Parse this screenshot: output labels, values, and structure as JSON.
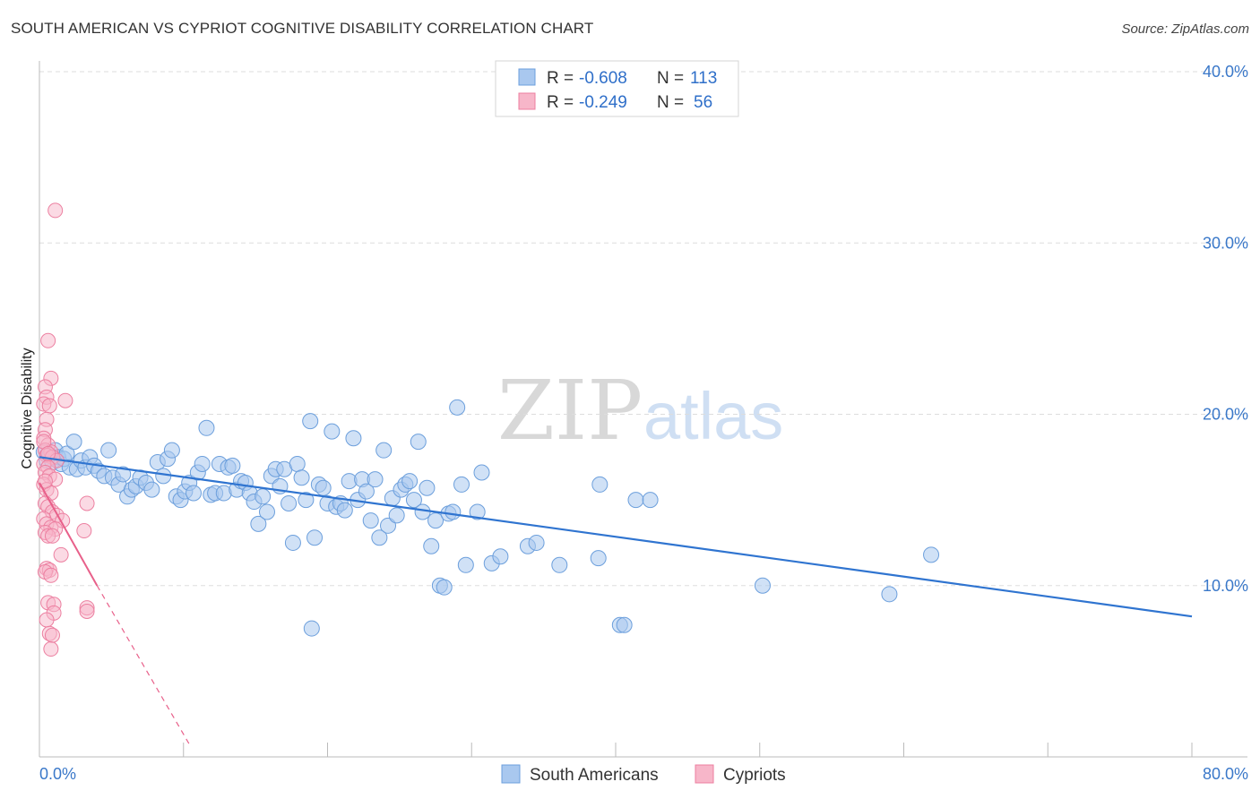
{
  "header": {
    "title": "SOUTH AMERICAN VS CYPRIOT COGNITIVE DISABILITY CORRELATION CHART",
    "source": "Source: ZipAtlas.com"
  },
  "watermark": {
    "zip": "ZIP",
    "atlas": "atlas"
  },
  "legend": {
    "rows": [
      {
        "r_label": "R =",
        "r_value": "-0.608",
        "n_label": "N =",
        "n_value": "113",
        "color": "#a9c8ef"
      },
      {
        "r_label": "R =",
        "r_value": "-0.249",
        "n_label": "N =",
        "n_value": "56",
        "color": "#f7b6c9"
      }
    ]
  },
  "bottom_legend": {
    "south_americans": "South Americans",
    "cypriots": "Cypriots"
  },
  "colors": {
    "blue_fill": "#a9c8ef",
    "blue_stroke": "#6c9fdc",
    "blue_line": "#2f74d0",
    "pink_fill": "#f7b6c9",
    "pink_stroke": "#ec7fa0",
    "pink_line": "#e8608a",
    "grid": "#dddddd",
    "axis_text": "#3a78c9"
  },
  "chart_data": {
    "type": "scatter",
    "title": "SOUTH AMERICAN VS CYPRIOT COGNITIVE DISABILITY CORRELATION CHART",
    "xlabel": "",
    "ylabel": "Cognitive Disability",
    "xlim": [
      0,
      80
    ],
    "ylim": [
      0,
      40
    ],
    "x_tick_labels": [
      "0.0%",
      "80.0%"
    ],
    "y_tick_labels": [
      "10.0%",
      "20.0%",
      "30.0%",
      "40.0%"
    ],
    "y_ticks": [
      10,
      20,
      30,
      40
    ],
    "grid": true,
    "series": [
      {
        "name": "South Americans",
        "r": -0.608,
        "n": 113,
        "trend": {
          "x0": 0,
          "y0": 17.5,
          "x1": 80,
          "y1": 8.2,
          "style": "solid"
        },
        "points": [
          [
            0.3,
            17.8
          ],
          [
            0.5,
            17.3
          ],
          [
            0.7,
            17.6
          ],
          [
            0.9,
            17.2
          ],
          [
            1.1,
            17.9
          ],
          [
            1.3,
            17.5
          ],
          [
            1.5,
            17.1
          ],
          [
            1.7,
            17.4
          ],
          [
            1.9,
            17.7
          ],
          [
            2.1,
            16.9
          ],
          [
            2.4,
            18.4
          ],
          [
            2.6,
            16.8
          ],
          [
            2.9,
            17.3
          ],
          [
            3.2,
            16.9
          ],
          [
            3.5,
            17.5
          ],
          [
            3.8,
            17.0
          ],
          [
            4.1,
            16.7
          ],
          [
            4.5,
            16.4
          ],
          [
            4.8,
            17.9
          ],
          [
            5.1,
            16.3
          ],
          [
            5.5,
            15.9
          ],
          [
            5.8,
            16.5
          ],
          [
            6.1,
            15.2
          ],
          [
            6.4,
            15.6
          ],
          [
            6.7,
            15.8
          ],
          [
            7.0,
            16.3
          ],
          [
            7.4,
            16.0
          ],
          [
            7.8,
            15.6
          ],
          [
            8.2,
            17.2
          ],
          [
            8.6,
            16.4
          ],
          [
            8.9,
            17.4
          ],
          [
            9.2,
            17.9
          ],
          [
            9.5,
            15.2
          ],
          [
            9.8,
            15.0
          ],
          [
            10.1,
            15.5
          ],
          [
            10.4,
            16.0
          ],
          [
            10.7,
            15.4
          ],
          [
            11.0,
            16.6
          ],
          [
            11.3,
            17.1
          ],
          [
            11.6,
            19.2
          ],
          [
            11.9,
            15.3
          ],
          [
            12.2,
            15.4
          ],
          [
            12.5,
            17.1
          ],
          [
            12.8,
            15.4
          ],
          [
            13.1,
            16.9
          ],
          [
            13.4,
            17.0
          ],
          [
            13.7,
            15.6
          ],
          [
            14.0,
            16.1
          ],
          [
            14.3,
            16.0
          ],
          [
            14.6,
            15.4
          ],
          [
            14.9,
            14.9
          ],
          [
            15.2,
            13.6
          ],
          [
            15.5,
            15.2
          ],
          [
            15.8,
            14.3
          ],
          [
            16.1,
            16.4
          ],
          [
            16.4,
            16.8
          ],
          [
            16.7,
            15.8
          ],
          [
            17.0,
            16.8
          ],
          [
            17.3,
            14.8
          ],
          [
            17.6,
            12.5
          ],
          [
            17.9,
            17.1
          ],
          [
            18.2,
            16.3
          ],
          [
            18.5,
            15.0
          ],
          [
            18.8,
            19.6
          ],
          [
            19.1,
            12.8
          ],
          [
            19.4,
            15.9
          ],
          [
            19.7,
            15.7
          ],
          [
            20.0,
            14.8
          ],
          [
            20.3,
            19.0
          ],
          [
            20.6,
            14.6
          ],
          [
            20.9,
            14.8
          ],
          [
            21.2,
            14.4
          ],
          [
            21.5,
            16.1
          ],
          [
            21.8,
            18.6
          ],
          [
            22.1,
            15.0
          ],
          [
            22.4,
            16.2
          ],
          [
            22.7,
            15.5
          ],
          [
            23.0,
            13.8
          ],
          [
            23.3,
            16.2
          ],
          [
            23.6,
            12.8
          ],
          [
            23.9,
            17.9
          ],
          [
            24.2,
            13.5
          ],
          [
            24.5,
            15.1
          ],
          [
            24.8,
            14.1
          ],
          [
            25.1,
            15.6
          ],
          [
            25.4,
            15.9
          ],
          [
            25.7,
            16.1
          ],
          [
            26.0,
            15.0
          ],
          [
            26.3,
            18.4
          ],
          [
            26.6,
            14.3
          ],
          [
            26.9,
            15.7
          ],
          [
            27.2,
            12.3
          ],
          [
            27.5,
            13.8
          ],
          [
            27.8,
            10.0
          ],
          [
            28.1,
            9.9
          ],
          [
            28.4,
            14.2
          ],
          [
            28.7,
            14.3
          ],
          [
            29.0,
            20.4
          ],
          [
            29.3,
            15.9
          ],
          [
            29.6,
            11.2
          ],
          [
            30.4,
            14.3
          ],
          [
            30.7,
            16.6
          ],
          [
            31.4,
            11.3
          ],
          [
            32.0,
            11.7
          ],
          [
            33.9,
            12.3
          ],
          [
            34.5,
            12.5
          ],
          [
            38.8,
            11.6
          ],
          [
            38.9,
            15.9
          ],
          [
            40.3,
            7.7
          ],
          [
            40.6,
            7.7
          ],
          [
            41.4,
            15.0
          ],
          [
            42.4,
            15.0
          ],
          [
            18.9,
            7.5
          ],
          [
            50.2,
            10.0
          ],
          [
            59.0,
            9.5
          ],
          [
            61.9,
            11.8
          ],
          [
            36.1,
            11.2
          ]
        ]
      },
      {
        "name": "Cypriots",
        "r": -0.249,
        "n": 56,
        "trend_solid": {
          "x0": 0,
          "y0": 16.0,
          "x1": 4.0,
          "y1": 10.0
        },
        "trend_dashed": {
          "x0": 4.0,
          "y0": 10.0,
          "x1": 10.5,
          "y1": 0.6
        },
        "points": [
          [
            1.1,
            31.9
          ],
          [
            0.6,
            24.3
          ],
          [
            0.8,
            22.1
          ],
          [
            0.4,
            21.6
          ],
          [
            0.5,
            21.0
          ],
          [
            1.8,
            20.8
          ],
          [
            0.3,
            20.6
          ],
          [
            0.7,
            20.5
          ],
          [
            0.5,
            19.7
          ],
          [
            0.4,
            19.1
          ],
          [
            0.3,
            18.6
          ],
          [
            0.6,
            18.2
          ],
          [
            0.4,
            17.9
          ],
          [
            0.8,
            17.8
          ],
          [
            0.5,
            17.6
          ],
          [
            0.9,
            17.5
          ],
          [
            1.2,
            17.3
          ],
          [
            0.3,
            17.1
          ],
          [
            0.6,
            16.9
          ],
          [
            0.4,
            16.6
          ],
          [
            0.7,
            16.4
          ],
          [
            1.1,
            16.2
          ],
          [
            0.3,
            15.9
          ],
          [
            0.5,
            15.6
          ],
          [
            0.8,
            15.4
          ],
          [
            3.3,
            14.8
          ],
          [
            0.4,
            14.8
          ],
          [
            0.6,
            14.6
          ],
          [
            0.9,
            14.3
          ],
          [
            1.2,
            14.1
          ],
          [
            0.3,
            13.9
          ],
          [
            1.6,
            13.8
          ],
          [
            0.5,
            13.6
          ],
          [
            0.8,
            13.4
          ],
          [
            1.1,
            13.3
          ],
          [
            0.4,
            13.1
          ],
          [
            3.1,
            13.2
          ],
          [
            0.6,
            12.9
          ],
          [
            0.9,
            12.9
          ],
          [
            1.5,
            11.8
          ],
          [
            0.5,
            11.0
          ],
          [
            0.7,
            10.9
          ],
          [
            0.4,
            10.8
          ],
          [
            0.8,
            10.6
          ],
          [
            0.6,
            9.0
          ],
          [
            1.0,
            8.9
          ],
          [
            3.3,
            8.7
          ],
          [
            3.3,
            8.5
          ],
          [
            1.0,
            8.4
          ],
          [
            0.5,
            8.0
          ],
          [
            0.7,
            7.2
          ],
          [
            0.9,
            7.1
          ],
          [
            0.8,
            6.3
          ],
          [
            0.3,
            18.4
          ],
          [
            0.6,
            17.7
          ],
          [
            0.4,
            16.1
          ]
        ]
      }
    ]
  }
}
